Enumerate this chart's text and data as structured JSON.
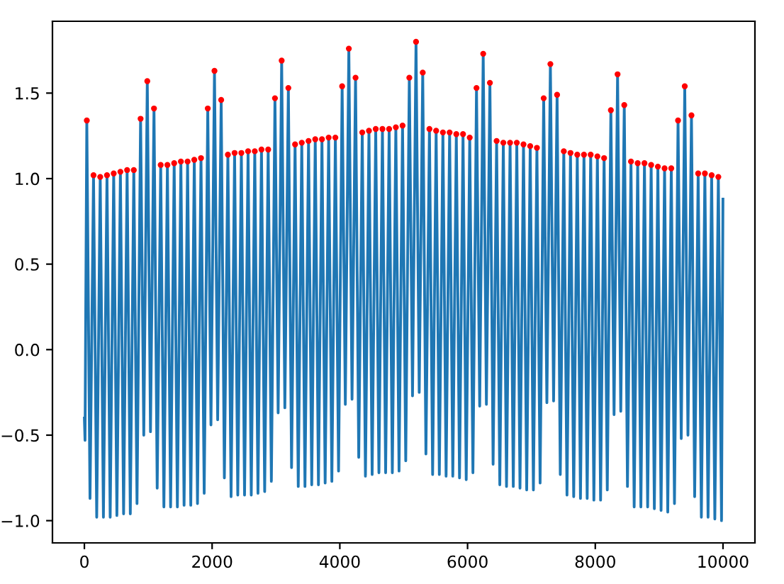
{
  "chart_data": {
    "type": "line",
    "xlim": [
      -500,
      10500
    ],
    "ylim": [
      -1.13,
      1.92
    ],
    "xticks": [
      0,
      2000,
      4000,
      6000,
      8000,
      10000
    ],
    "yticks": [
      {
        "value": -1.0,
        "label": "−1.0"
      },
      {
        "value": -0.5,
        "label": "−0.5"
      },
      {
        "value": 0,
        "label": "0.0"
      },
      {
        "value": 0.5,
        "label": "0.5"
      },
      {
        "value": 1,
        "label": "1.0"
      },
      {
        "value": 1.5,
        "label": "1.5"
      }
    ],
    "series": [
      {
        "color": "#1f77b4",
        "x": [
          0,
          10,
          38,
          88,
          143,
          193,
          248,
          298,
          354,
          404,
          459,
          509,
          564,
          614,
          669,
          719,
          774,
          824,
          880,
          930,
          985,
          1035,
          1090,
          1140,
          1195,
          1245,
          1300,
          1350,
          1406,
          1456,
          1511,
          1561,
          1616,
          1666,
          1721,
          1771,
          1826,
          1876,
          1932,
          1982,
          2037,
          2087,
          2142,
          2192,
          2247,
          2297,
          2352,
          2402,
          2458,
          2508,
          2563,
          2613,
          2668,
          2718,
          2773,
          2823,
          2878,
          2928,
          2984,
          3034,
          3089,
          3139,
          3194,
          3244,
          3299,
          3349,
          3404,
          3454,
          3510,
          3560,
          3615,
          3665,
          3720,
          3770,
          3825,
          3875,
          3930,
          3980,
          4036,
          4086,
          4141,
          4191,
          4246,
          4296,
          4351,
          4401,
          4456,
          4506,
          4562,
          4612,
          4667,
          4717,
          4772,
          4822,
          4877,
          4927,
          4982,
          5032,
          5088,
          5138,
          5193,
          5243,
          5298,
          5348,
          5403,
          5453,
          5508,
          5558,
          5614,
          5664,
          5719,
          5769,
          5824,
          5874,
          5929,
          5979,
          6034,
          6084,
          6140,
          6190,
          6245,
          6295,
          6350,
          6400,
          6455,
          6505,
          6560,
          6610,
          6666,
          6716,
          6771,
          6821,
          6876,
          6926,
          6981,
          7031,
          7086,
          7136,
          7192,
          7242,
          7297,
          7347,
          7402,
          7452,
          7507,
          7557,
          7612,
          7662,
          7718,
          7768,
          7823,
          7873,
          7928,
          7978,
          8033,
          8083,
          8138,
          8188,
          8244,
          8294,
          8349,
          8399,
          8454,
          8504,
          8559,
          8609,
          8664,
          8714,
          8770,
          8820,
          8875,
          8925,
          8980,
          9030,
          9085,
          9135,
          9190,
          9240,
          9296,
          9346,
          9401,
          9451,
          9506,
          9556,
          9611,
          9661,
          9716,
          9766,
          9822,
          9872,
          9927,
          9977,
          9999
        ],
        "values": [
          -0.4,
          -0.53,
          1.34,
          -0.87,
          1.02,
          -0.98,
          1.01,
          -0.98,
          1.02,
          -0.98,
          1.03,
          -0.97,
          1.04,
          -0.96,
          1.05,
          -0.96,
          1.05,
          -0.9,
          1.35,
          -0.5,
          1.57,
          -0.48,
          1.41,
          -0.81,
          1.08,
          -0.92,
          1.08,
          -0.92,
          1.09,
          -0.92,
          1.1,
          -0.91,
          1.1,
          -0.91,
          1.11,
          -0.9,
          1.12,
          -0.84,
          1.41,
          -0.44,
          1.63,
          -0.41,
          1.46,
          -0.75,
          1.14,
          -0.86,
          1.15,
          -0.85,
          1.15,
          -0.85,
          1.16,
          -0.85,
          1.16,
          -0.84,
          1.17,
          -0.83,
          1.17,
          -0.77,
          1.47,
          -0.37,
          1.69,
          -0.34,
          1.53,
          -0.69,
          1.2,
          -0.8,
          1.21,
          -0.8,
          1.22,
          -0.79,
          1.23,
          -0.79,
          1.23,
          -0.78,
          1.24,
          -0.77,
          1.24,
          -0.71,
          1.54,
          -0.32,
          1.76,
          -0.29,
          1.59,
          -0.63,
          1.27,
          -0.74,
          1.28,
          -0.73,
          1.29,
          -0.72,
          1.29,
          -0.72,
          1.29,
          -0.72,
          1.3,
          -0.71,
          1.31,
          -0.65,
          1.59,
          -0.27,
          1.8,
          -0.25,
          1.62,
          -0.61,
          1.29,
          -0.73,
          1.28,
          -0.73,
          1.27,
          -0.74,
          1.27,
          -0.74,
          1.26,
          -0.75,
          1.26,
          -0.76,
          1.24,
          -0.72,
          1.53,
          -0.33,
          1.73,
          -0.32,
          1.56,
          -0.67,
          1.22,
          -0.79,
          1.21,
          -0.8,
          1.21,
          -0.8,
          1.21,
          -0.81,
          1.2,
          -0.82,
          1.19,
          -0.82,
          1.18,
          -0.78,
          1.47,
          -0.31,
          1.67,
          -0.3,
          1.49,
          -0.73,
          1.16,
          -0.85,
          1.15,
          -0.86,
          1.14,
          -0.87,
          1.14,
          -0.87,
          1.14,
          -0.88,
          1.13,
          -0.88,
          1.12,
          -0.82,
          1.4,
          -0.38,
          1.61,
          -0.36,
          1.43,
          -0.8,
          1.1,
          -0.92,
          1.09,
          -0.92,
          1.09,
          -0.92,
          1.08,
          -0.93,
          1.07,
          -0.94,
          1.06,
          -0.95,
          1.06,
          -0.9,
          1.34,
          -0.52,
          1.54,
          -0.5,
          1.37,
          -0.86,
          1.03,
          -0.98,
          1.03,
          -0.98,
          1.02,
          -0.99,
          1.01,
          -1.0,
          0.88
        ]
      },
      {
        "type": "scatter",
        "color": "#ff0000",
        "marker": "circle",
        "x": [
          38,
          143,
          248,
          354,
          459,
          564,
          669,
          774,
          880,
          985,
          1090,
          1195,
          1300,
          1406,
          1511,
          1616,
          1721,
          1826,
          1932,
          2037,
          2142,
          2247,
          2352,
          2458,
          2563,
          2668,
          2773,
          2878,
          2984,
          3089,
          3194,
          3299,
          3404,
          3510,
          3615,
          3720,
          3825,
          3930,
          4036,
          4141,
          4246,
          4351,
          4456,
          4562,
          4667,
          4772,
          4877,
          4982,
          5088,
          5193,
          5298,
          5403,
          5508,
          5614,
          5719,
          5824,
          5929,
          6034,
          6140,
          6245,
          6350,
          6455,
          6560,
          6666,
          6771,
          6876,
          6981,
          7086,
          7192,
          7297,
          7402,
          7507,
          7612,
          7718,
          7823,
          7928,
          8033,
          8138,
          8244,
          8349,
          8454,
          8559,
          8664,
          8770,
          8875,
          8980,
          9085,
          9190,
          9296,
          9401,
          9506,
          9611,
          9716,
          9822,
          9927
        ],
        "values": [
          1.34,
          1.02,
          1.01,
          1.02,
          1.03,
          1.04,
          1.05,
          1.05,
          1.35,
          1.57,
          1.41,
          1.08,
          1.08,
          1.09,
          1.1,
          1.1,
          1.11,
          1.12,
          1.41,
          1.63,
          1.46,
          1.14,
          1.15,
          1.15,
          1.16,
          1.16,
          1.17,
          1.17,
          1.47,
          1.69,
          1.53,
          1.2,
          1.21,
          1.22,
          1.23,
          1.23,
          1.24,
          1.24,
          1.54,
          1.76,
          1.59,
          1.27,
          1.28,
          1.29,
          1.29,
          1.29,
          1.3,
          1.31,
          1.59,
          1.8,
          1.62,
          1.29,
          1.28,
          1.27,
          1.27,
          1.26,
          1.26,
          1.24,
          1.53,
          1.73,
          1.56,
          1.22,
          1.21,
          1.21,
          1.21,
          1.2,
          1.19,
          1.18,
          1.47,
          1.67,
          1.49,
          1.16,
          1.15,
          1.14,
          1.14,
          1.14,
          1.13,
          1.12,
          1.4,
          1.61,
          1.43,
          1.1,
          1.09,
          1.09,
          1.08,
          1.07,
          1.06,
          1.06,
          1.34,
          1.54,
          1.37,
          1.03,
          1.03,
          1.02,
          1.01
        ]
      }
    ]
  }
}
